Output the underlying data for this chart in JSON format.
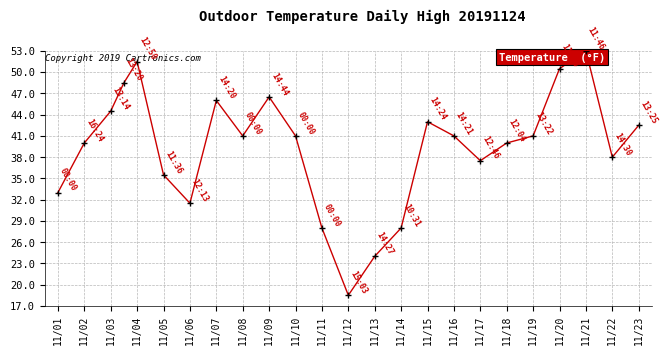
{
  "title": "Outdoor Temperature Daily High 20191124",
  "copyright": "Copyright 2019 Cartronics.com",
  "legend_label": "Temperature  (°F)",
  "x_ticks_labels": [
    "11/01",
    "11/02",
    "11/03",
    "11/04",
    "11/05",
    "11/06",
    "11/07",
    "11/08",
    "11/09",
    "11/10",
    "11/11",
    "11/12",
    "11/13",
    "11/14",
    "11/15",
    "11/16",
    "11/17",
    "11/18",
    "11/19",
    "11/20",
    "11/21",
    "11/22",
    "11/23"
  ],
  "x_positions": [
    0,
    1,
    2,
    2.5,
    3,
    4,
    5,
    6,
    7,
    8,
    9,
    10,
    11,
    12,
    13,
    14,
    15,
    16,
    17,
    18,
    19,
    20,
    21,
    22
  ],
  "temperatures": [
    33.0,
    40.0,
    44.5,
    48.5,
    51.5,
    35.5,
    31.5,
    46.0,
    41.0,
    46.5,
    41.0,
    28.0,
    18.5,
    24.0,
    28.0,
    43.0,
    41.0,
    37.5,
    40.0,
    41.0,
    50.5,
    53.0,
    38.0,
    42.5
  ],
  "times": [
    "00:00",
    "16:24",
    "13:14",
    "13:20",
    "12:50",
    "11:36",
    "12:13",
    "14:20",
    "00:00",
    "14:44",
    "00:00",
    "00:00",
    "15:03",
    "14:27",
    "10:31",
    "14:24",
    "14:21",
    "12:46",
    "12:04",
    "13:22",
    "11:46",
    "11:46",
    "14:30",
    "13:25"
  ],
  "ylim": [
    17.0,
    53.0
  ],
  "yticks": [
    17.0,
    20.0,
    23.0,
    26.0,
    29.0,
    32.0,
    35.0,
    38.0,
    41.0,
    44.0,
    47.0,
    50.0,
    53.0
  ],
  "xlim": [
    -0.5,
    22.5
  ],
  "line_color": "#cc0000",
  "marker_color": "#000000",
  "text_color": "#cc0000",
  "title_color": "#000000",
  "copyright_color": "#000000",
  "bg_color": "#ffffff",
  "grid_color": "#b0b0b0",
  "legend_bg": "#cc0000",
  "legend_text_color": "#ffffff",
  "title_fontsize": 10,
  "copyright_fontsize": 6.5,
  "legend_fontsize": 7.5,
  "tick_fontsize": 7,
  "label_fontsize": 6
}
